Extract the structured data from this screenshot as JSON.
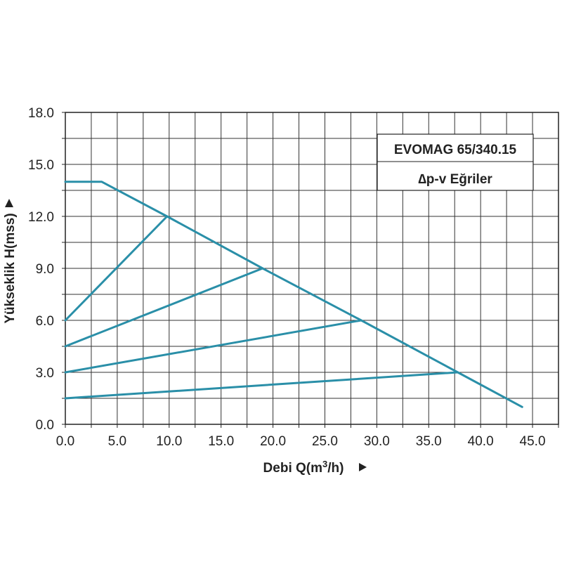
{
  "chart_data": {
    "type": "line",
    "title_lines": [
      "EVOMAG 65/340.15",
      "∆p-v Eğriler"
    ],
    "xlabel": "Debi Q(m",
    "xlabel_sup": "3",
    "xlabel_tail": "/h)",
    "ylabel": "Yükseklik H(mss)",
    "xlim": [
      0,
      47.5
    ],
    "ylim": [
      0,
      18
    ],
    "x_ticks": [
      0,
      5,
      10,
      15,
      20,
      25,
      30,
      35,
      40,
      45
    ],
    "x_tick_labels": [
      "0.0",
      "5.0",
      "10.0",
      "15.0",
      "20.0",
      "25.0",
      "30.0",
      "35.0",
      "40.0",
      "45.0"
    ],
    "y_ticks": [
      0,
      3,
      6,
      9,
      12,
      15,
      18
    ],
    "y_tick_labels": [
      "0.0",
      "3.0",
      "6.0",
      "9.0",
      "12.0",
      "15.0",
      "18.0"
    ],
    "x_grid_step": 2.5,
    "y_grid_step": 1.5,
    "grid": true,
    "legend_position": "top-right",
    "line_color": "#2a8fa8",
    "series": [
      {
        "x": [
          0,
          3.5,
          9.8,
          19,
          28.5,
          37.8,
          44
        ],
        "y": [
          14,
          14,
          12,
          9,
          6,
          3,
          1
        ]
      },
      {
        "x": [
          0,
          9.8
        ],
        "y": [
          6,
          12
        ]
      },
      {
        "x": [
          0,
          19
        ],
        "y": [
          4.5,
          9
        ]
      },
      {
        "x": [
          0,
          28.5
        ],
        "y": [
          3,
          6
        ]
      },
      {
        "x": [
          0,
          37.8
        ],
        "y": [
          1.5,
          3
        ]
      }
    ]
  }
}
